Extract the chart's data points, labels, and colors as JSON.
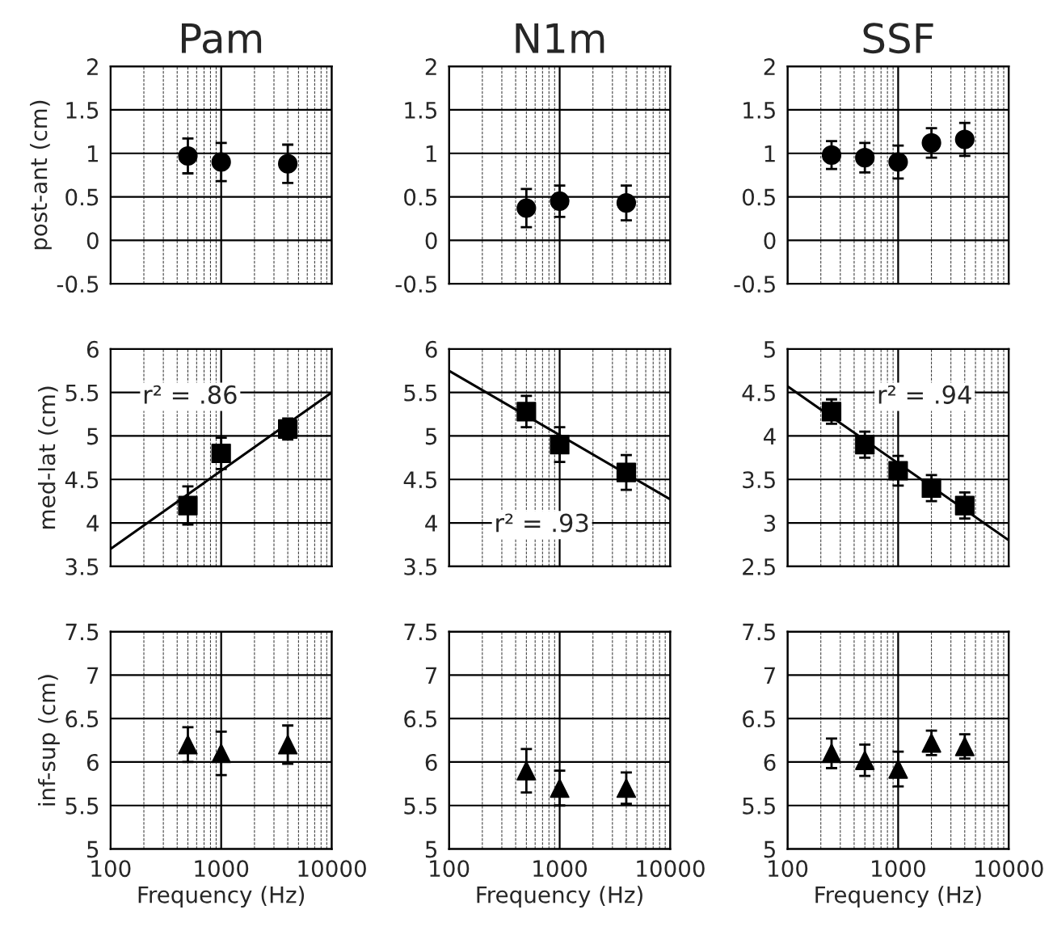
{
  "chart_data": [
    {
      "type": "scatter",
      "title": "Pam",
      "ylabel": "post-ant (cm)",
      "marker": "circle",
      "log": "x",
      "grid": true,
      "tick_labels": "y",
      "xlim": [
        100,
        10000
      ],
      "xticks": [
        100,
        1000,
        10000
      ],
      "ylim": [
        -0.5,
        2
      ],
      "yticks": [
        -0.5,
        0,
        0.5,
        1,
        1.5,
        2
      ],
      "series": [
        {
          "color": "#000000",
          "x": [
            500,
            1000,
            4000
          ],
          "values": [
            0.97,
            0.9,
            0.88
          ],
          "errors": [
            0.2,
            0.22,
            0.22
          ]
        }
      ]
    },
    {
      "type": "scatter",
      "title": "N1m",
      "marker": "circle",
      "log": "x",
      "grid": true,
      "tick_labels": "y",
      "xlim": [
        100,
        10000
      ],
      "xticks": [
        100,
        1000,
        10000
      ],
      "ylim": [
        -0.5,
        2
      ],
      "yticks": [
        -0.5,
        0,
        0.5,
        1,
        1.5,
        2
      ],
      "series": [
        {
          "color": "#000000",
          "x": [
            500,
            1000,
            4000
          ],
          "values": [
            0.37,
            0.45,
            0.43
          ],
          "errors": [
            0.22,
            0.18,
            0.2
          ]
        }
      ]
    },
    {
      "type": "scatter",
      "title": "SSF",
      "marker": "circle",
      "log": "x",
      "grid": true,
      "tick_labels": "y",
      "xlim": [
        100,
        10000
      ],
      "xticks": [
        100,
        1000,
        10000
      ],
      "ylim": [
        -0.5,
        2
      ],
      "yticks": [
        -0.5,
        0,
        0.5,
        1,
        1.5,
        2
      ],
      "series": [
        {
          "color": "#000000",
          "x": [
            250,
            500,
            1000,
            2000,
            4000
          ],
          "values": [
            0.98,
            0.95,
            0.9,
            1.12,
            1.16
          ],
          "errors": [
            0.16,
            0.17,
            0.19,
            0.17,
            0.19
          ]
        }
      ]
    },
    {
      "type": "scatter",
      "ylabel": "med-lat (cm)",
      "marker": "square",
      "log": "x",
      "grid": true,
      "tick_labels": "y",
      "xlim": [
        100,
        10000
      ],
      "xticks": [
        100,
        1000,
        10000
      ],
      "ylim": [
        3.5,
        6
      ],
      "yticks": [
        3.5,
        4,
        4.5,
        5,
        5.5,
        6
      ],
      "annotations": [
        "r² = .86"
      ],
      "series": [
        {
          "color": "#000000",
          "x": [
            500,
            1000,
            4000
          ],
          "values": [
            4.2,
            4.8,
            5.08
          ],
          "errors": [
            0.22,
            0.18,
            0.12
          ]
        },
        {
          "type": "line",
          "marker": "none",
          "color": "#000000",
          "x": [
            100,
            10000
          ],
          "values": [
            3.7,
            5.5
          ]
        }
      ]
    },
    {
      "type": "scatter",
      "marker": "square",
      "log": "x",
      "grid": true,
      "tick_labels": "y",
      "xlim": [
        100,
        10000
      ],
      "xticks": [
        100,
        1000,
        10000
      ],
      "ylim": [
        3.5,
        6
      ],
      "yticks": [
        3.5,
        4,
        4.5,
        5,
        5.5,
        6
      ],
      "annotations": [
        "r² = .93"
      ],
      "series": [
        {
          "color": "#000000",
          "x": [
            500,
            1000,
            4000
          ],
          "values": [
            5.28,
            4.9,
            4.58
          ],
          "errors": [
            0.18,
            0.2,
            0.2
          ]
        },
        {
          "type": "line",
          "marker": "none",
          "color": "#000000",
          "x": [
            100,
            10000
          ],
          "values": [
            5.75,
            4.27
          ]
        }
      ]
    },
    {
      "type": "scatter",
      "marker": "square",
      "log": "x",
      "grid": true,
      "tick_labels": "y",
      "xlim": [
        100,
        10000
      ],
      "xticks": [
        100,
        1000,
        10000
      ],
      "ylim": [
        2.5,
        5
      ],
      "yticks": [
        2.5,
        3,
        3.5,
        4,
        4.5,
        5
      ],
      "annotations": [
        "r² = .94"
      ],
      "series": [
        {
          "color": "#000000",
          "x": [
            250,
            500,
            1000,
            2000,
            4000
          ],
          "values": [
            4.28,
            3.9,
            3.6,
            3.4,
            3.2
          ],
          "errors": [
            0.14,
            0.15,
            0.17,
            0.15,
            0.15
          ]
        },
        {
          "type": "line",
          "marker": "none",
          "color": "#000000",
          "x": [
            100,
            10000
          ],
          "values": [
            4.57,
            2.8
          ]
        }
      ]
    },
    {
      "type": "scatter",
      "ylabel": "inf-sup (cm)",
      "xlabel": "Frequency (Hz)",
      "marker": "triangle",
      "log": "x",
      "grid": true,
      "xlim": [
        100,
        10000
      ],
      "xticks": [
        100,
        1000,
        10000
      ],
      "ylim": [
        5,
        7.5
      ],
      "yticks": [
        5,
        5.5,
        6,
        6.5,
        7,
        7.5
      ],
      "series": [
        {
          "color": "#000000",
          "x": [
            500,
            1000,
            4000
          ],
          "values": [
            6.2,
            6.1,
            6.2
          ],
          "errors": [
            0.2,
            0.25,
            0.22
          ]
        }
      ]
    },
    {
      "type": "scatter",
      "xlabel": "Frequency (Hz)",
      "marker": "triangle",
      "log": "x",
      "grid": true,
      "xlim": [
        100,
        10000
      ],
      "xticks": [
        100,
        1000,
        10000
      ],
      "ylim": [
        5,
        7.5
      ],
      "yticks": [
        5,
        5.5,
        6,
        6.5,
        7,
        7.5
      ],
      "series": [
        {
          "color": "#000000",
          "x": [
            500,
            1000,
            4000
          ],
          "values": [
            5.9,
            5.7,
            5.7
          ],
          "errors": [
            0.25,
            0.2,
            0.18
          ]
        }
      ]
    },
    {
      "type": "scatter",
      "xlabel": "Frequency (Hz)",
      "marker": "triangle",
      "log": "x",
      "grid": true,
      "xlim": [
        100,
        10000
      ],
      "xticks": [
        100,
        1000,
        10000
      ],
      "ylim": [
        5,
        7.5
      ],
      "yticks": [
        5,
        5.5,
        6,
        6.5,
        7,
        7.5
      ],
      "series": [
        {
          "color": "#000000",
          "x": [
            250,
            500,
            1000,
            2000,
            4000
          ],
          "values": [
            6.1,
            6.02,
            5.92,
            6.22,
            6.18
          ],
          "errors": [
            0.17,
            0.18,
            0.2,
            0.14,
            0.14
          ]
        }
      ]
    }
  ]
}
